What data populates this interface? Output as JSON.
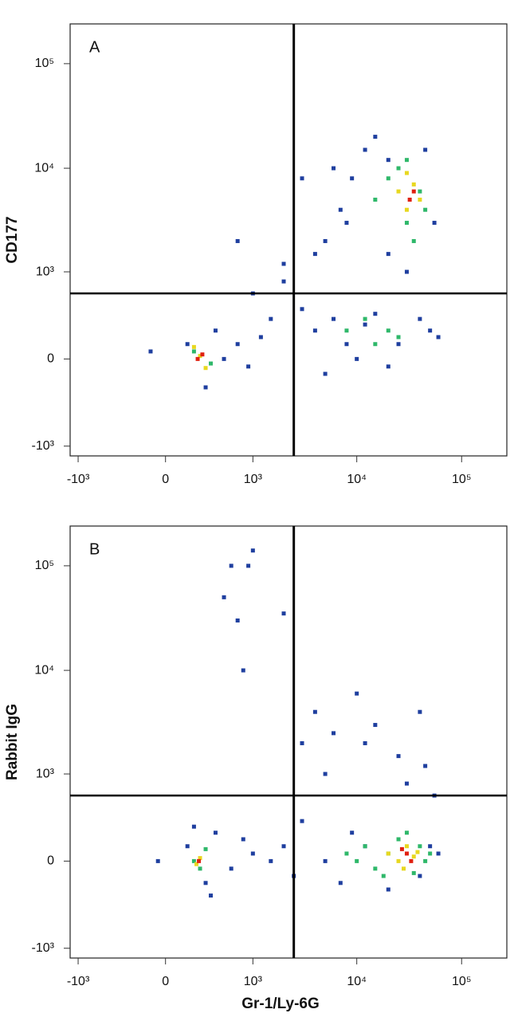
{
  "chart_data": [
    {
      "type": "scatter",
      "panel_label": "A",
      "y_label": "CD177",
      "xlim": [
        -1200,
        270000
      ],
      "ylim": [
        -1250,
        240000
      ],
      "xscale": "biexponential",
      "yscale": "biexponential",
      "xticks": [
        {
          "value": -1000,
          "label": "-10³"
        },
        0,
        {
          "value": 1000,
          "label": "10³"
        },
        {
          "value": 10000,
          "label": "10⁴"
        },
        {
          "value": 100000,
          "label": "10⁵"
        }
      ],
      "yticks": [
        {
          "value": -1000,
          "label": "-10³"
        },
        0,
        {
          "value": 1000,
          "label": "10³"
        },
        {
          "value": 10000,
          "label": "10⁴"
        },
        {
          "value": 100000,
          "label": "10⁵"
        }
      ],
      "gates": {
        "x": 2500,
        "y": 600
      },
      "series": [
        {
          "color": "#1f3f9f",
          "x": [
            150,
            300,
            400,
            500,
            700,
            900,
            1200,
            1500,
            2000,
            3000,
            4000,
            5000,
            6000,
            8000,
            10000,
            12000,
            15000,
            20000,
            25000,
            40000,
            50000,
            60000,
            5000,
            7000,
            9000,
            12000,
            15000,
            20000,
            45000,
            55000,
            4000,
            6000,
            8000,
            20000,
            30000,
            3000,
            1000,
            700,
            2000,
            -100
          ],
          "y": [
            100,
            -200,
            200,
            0,
            100,
            -50,
            150,
            300,
            800,
            400,
            200,
            -100,
            300,
            100,
            0,
            250,
            350,
            -50,
            100,
            300,
            200,
            150,
            2000,
            4000,
            8000,
            15000,
            20000,
            12000,
            15000,
            3000,
            1500,
            10000,
            3000,
            1500,
            1000,
            8000,
            600,
            2000,
            1200,
            50
          ]
        },
        {
          "color": "#2fb86a",
          "x": [
            200,
            350,
            8000,
            12000,
            15000,
            20000,
            25000,
            30000,
            35000,
            40000,
            20000,
            25000,
            45000,
            30000,
            15000
          ],
          "y": [
            50,
            -30,
            200,
            300,
            100,
            200,
            150,
            3000,
            2000,
            6000,
            8000,
            10000,
            4000,
            12000,
            5000
          ]
        },
        {
          "color": "#e8d820",
          "x": [
            250,
            300,
            200,
            25000,
            30000,
            35000,
            40000,
            30000
          ],
          "y": [
            20,
            -60,
            80,
            6000,
            4000,
            7000,
            5000,
            9000
          ]
        },
        {
          "color": "#e02010",
          "x": [
            230,
            270,
            32000,
            35000
          ],
          "y": [
            0,
            30,
            5000,
            6000
          ]
        }
      ]
    },
    {
      "type": "scatter",
      "panel_label": "B",
      "y_label": "Rabbit IgG",
      "x_label": "Gr-1/Ly-6G",
      "xlim": [
        -1200,
        270000
      ],
      "ylim": [
        -1250,
        240000
      ],
      "xscale": "biexponential",
      "yscale": "biexponential",
      "xticks": [
        {
          "value": -1000,
          "label": "-10³"
        },
        0,
        {
          "value": 1000,
          "label": "10³"
        },
        {
          "value": 10000,
          "label": "10⁴"
        },
        {
          "value": 100000,
          "label": "10⁵"
        }
      ],
      "yticks": [
        {
          "value": -1000,
          "label": "-10³"
        },
        0,
        {
          "value": 1000,
          "label": "10³"
        },
        {
          "value": 10000,
          "label": "10⁴"
        },
        {
          "value": 100000,
          "label": "10⁵"
        }
      ],
      "gates": {
        "x": 2500,
        "y": 600
      },
      "series": [
        {
          "color": "#1f3f9f",
          "x": [
            150,
            300,
            400,
            600,
            800,
            1000,
            1500,
            2000,
            2500,
            3000,
            5000,
            7000,
            9000,
            12000,
            20000,
            40000,
            50000,
            60000,
            500,
            700,
            900,
            1000,
            2000,
            4000,
            6000,
            10000,
            12000,
            25000,
            40000,
            600,
            800,
            3000,
            -50,
            200,
            5000,
            15000,
            30000,
            45000,
            55000,
            350
          ],
          "y": [
            100,
            -150,
            200,
            -50,
            150,
            50,
            0,
            100,
            -100,
            300,
            0,
            -150,
            200,
            100,
            -200,
            -100,
            100,
            50,
            50000,
            30000,
            100000,
            140000,
            35000,
            4000,
            2500,
            6000,
            2000,
            1500,
            4000,
            100000,
            10000,
            2000,
            0,
            250,
            1000,
            3000,
            800,
            1200,
            600,
            -250
          ]
        },
        {
          "color": "#2fb86a",
          "x": [
            200,
            300,
            10000,
            12000,
            15000,
            20000,
            25000,
            35000,
            40000,
            45000,
            8000,
            18000,
            30000,
            50000,
            250
          ],
          "y": [
            0,
            80,
            0,
            100,
            -50,
            50,
            150,
            -80,
            100,
            0,
            50,
            -100,
            200,
            50,
            -50
          ]
        },
        {
          "color": "#e8d820",
          "x": [
            250,
            220,
            20000,
            25000,
            30000,
            35000,
            28000,
            38000
          ],
          "y": [
            20,
            -20,
            50,
            0,
            100,
            30,
            -50,
            60
          ]
        },
        {
          "color": "#e02010",
          "x": [
            240,
            30000,
            33000,
            27000
          ],
          "y": [
            0,
            50,
            0,
            80
          ]
        }
      ]
    }
  ]
}
